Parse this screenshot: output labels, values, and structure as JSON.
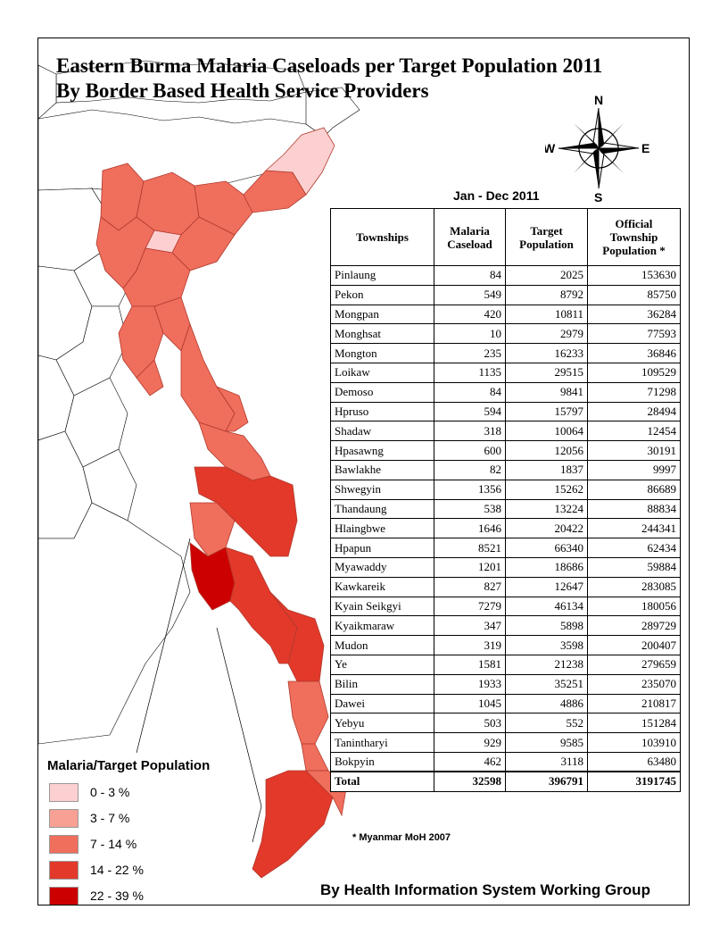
{
  "title_line1": "Eastern Burma Malaria Caseloads per Target Population 2011",
  "title_line2": "By Border Based Health Service Providers",
  "compass": {
    "n": "N",
    "s": "S",
    "e": "E",
    "w": "W"
  },
  "period": "Jan - Dec 2011",
  "table": {
    "headers": {
      "townships": "Townships",
      "caseload_1": "Malaria",
      "caseload_2": "Caseload",
      "target_1": "Target",
      "target_2": "Population",
      "official_1": "Official",
      "official_2": "Township",
      "official_3": "Population  *"
    },
    "rows": [
      {
        "township": "Pinlaung",
        "caseload": "84",
        "target": "2025",
        "official": "153630"
      },
      {
        "township": "Pekon",
        "caseload": "549",
        "target": "8792",
        "official": "85750"
      },
      {
        "township": "Mongpan",
        "caseload": "420",
        "target": "10811",
        "official": "36284"
      },
      {
        "township": "Monghsat",
        "caseload": "10",
        "target": "2979",
        "official": "77593"
      },
      {
        "township": "Mongton",
        "caseload": "235",
        "target": "16233",
        "official": "36846"
      },
      {
        "township": "Loikaw",
        "caseload": "1135",
        "target": "29515",
        "official": "109529"
      },
      {
        "township": "Demoso",
        "caseload": "84",
        "target": "9841",
        "official": "71298"
      },
      {
        "township": "Hpruso",
        "caseload": "594",
        "target": "15797",
        "official": "28494"
      },
      {
        "township": "Shadaw",
        "caseload": "318",
        "target": "10064",
        "official": "12454"
      },
      {
        "township": "Hpasawng",
        "caseload": "600",
        "target": "12056",
        "official": "30191"
      },
      {
        "township": "Bawlakhe",
        "caseload": "82",
        "target": "1837",
        "official": "9997"
      },
      {
        "township": "Shwegyin",
        "caseload": "1356",
        "target": "15262",
        "official": "86689"
      },
      {
        "township": "Thandaung",
        "caseload": "538",
        "target": "13224",
        "official": "88834"
      },
      {
        "township": "Hlaingbwe",
        "caseload": "1646",
        "target": "20422",
        "official": "244341"
      },
      {
        "township": "Hpapun",
        "caseload": "8521",
        "target": "66340",
        "official": "62434"
      },
      {
        "township": "Myawaddy",
        "caseload": "1201",
        "target": "18686",
        "official": "59884"
      },
      {
        "township": "Kawkareik",
        "caseload": "827",
        "target": "12647",
        "official": "283085"
      },
      {
        "township": "Kyain Seikgyi",
        "caseload": "7279",
        "target": "46134",
        "official": "180056"
      },
      {
        "township": "Kyaikmaraw",
        "caseload": "347",
        "target": "5898",
        "official": "289729"
      },
      {
        "township": "Mudon",
        "caseload": "319",
        "target": "3598",
        "official": "200407"
      },
      {
        "township": "Ye",
        "caseload": "1581",
        "target": "21238",
        "official": "279659"
      },
      {
        "township": "Bilin",
        "caseload": "1933",
        "target": "35251",
        "official": "235070"
      },
      {
        "township": "Dawei",
        "caseload": "1045",
        "target": "4886",
        "official": "210817"
      },
      {
        "township": "Yebyu",
        "caseload": "503",
        "target": "552",
        "official": "151284"
      },
      {
        "township": "Tanintharyi",
        "caseload": "929",
        "target": "9585",
        "official": "103910"
      },
      {
        "township": "Bokpyin",
        "caseload": "462",
        "target": "3118",
        "official": "63480"
      }
    ],
    "total": {
      "label": "Total",
      "caseload": "32598",
      "target": "396791",
      "official": "3191745"
    }
  },
  "footnote": "* Myanmar MoH 2007",
  "credit": "By Health Information System Working Group",
  "legend": {
    "title": "Malaria/Target Population",
    "items": [
      {
        "label": "0 - 3 %",
        "color": "#fcd0d0"
      },
      {
        "label": "3 - 7 %",
        "color": "#f7a093"
      },
      {
        "label": "7 - 14 %",
        "color": "#f06e5c"
      },
      {
        "label": "14 - 22 %",
        "color": "#e2392a"
      },
      {
        "label": "22 - 39 %",
        "color": "#cc0000"
      }
    ]
  }
}
